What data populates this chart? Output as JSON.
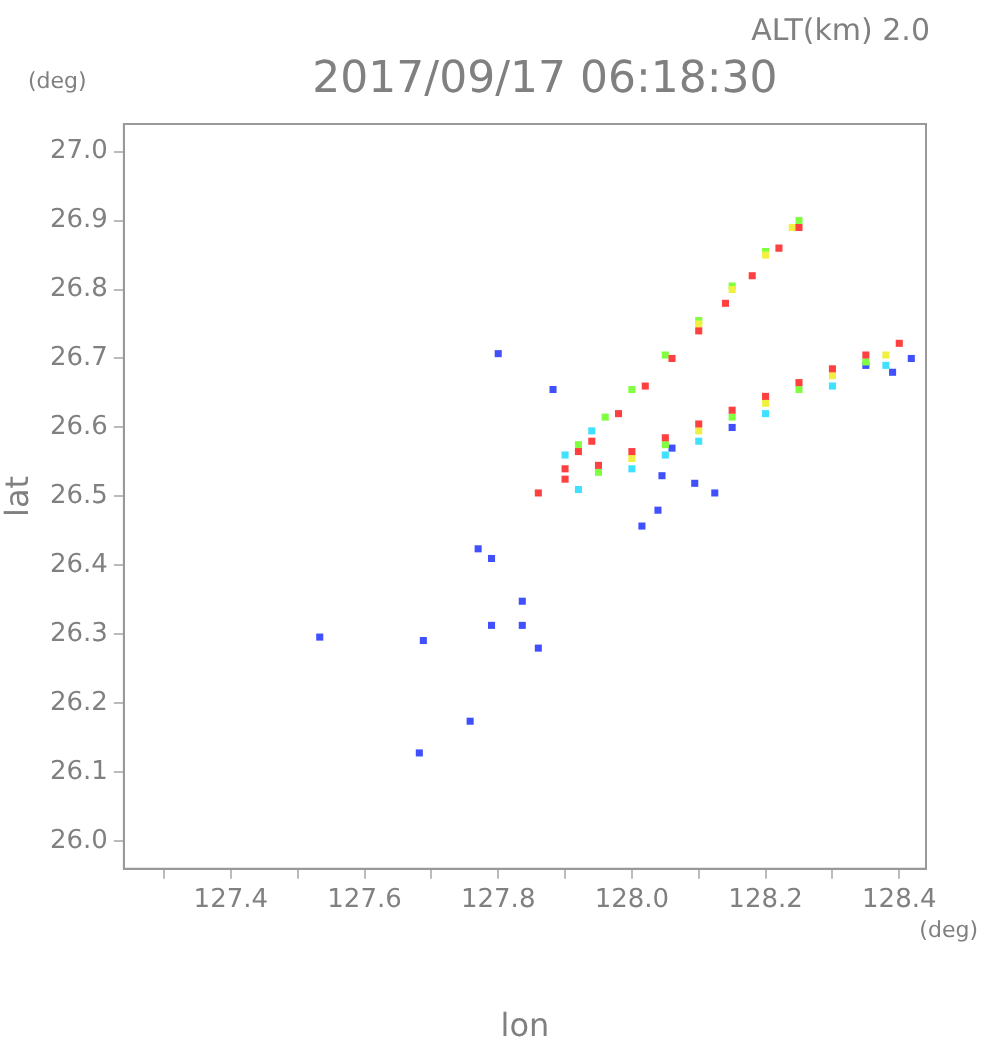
{
  "chart_data": {
    "type": "scatter",
    "title": "2017/09/17 06:18:30",
    "xlabel": "lon",
    "ylabel": "lat",
    "annotations": [
      "ALT(km) 2.0",
      "(deg)",
      "(deg)"
    ],
    "xlim": [
      127.24,
      128.44
    ],
    "ylim": [
      25.96,
      27.04
    ],
    "xticks": [
      {
        "value": 127.3,
        "label": null
      },
      127.4,
      {
        "value": 127.5,
        "label": null
      },
      127.6,
      {
        "value": 127.7,
        "label": null
      },
      127.8,
      {
        "value": 127.9,
        "label": null
      },
      {
        "value": 128.0,
        "label": "128.0"
      },
      {
        "value": 128.1,
        "label": null
      },
      128.2,
      {
        "value": 128.3,
        "label": null
      },
      128.4
    ],
    "yticks": [
      {
        "value": 26.0,
        "label": "26.0"
      },
      26.1,
      26.2,
      26.3,
      26.4,
      26.5,
      26.6,
      26.7,
      26.8,
      26.9,
      {
        "value": 27.0,
        "label": "27.0"
      }
    ],
    "grid": false,
    "legend": false,
    "marker": "square",
    "series": [
      {
        "color": "#ff4040",
        "x": [
          127.86,
          127.9,
          127.92,
          127.94,
          127.98,
          128.02,
          128.06,
          128.1,
          128.14,
          128.18,
          128.22,
          128.25,
          127.9,
          127.95,
          128.0,
          128.05,
          128.1,
          128.15,
          128.2,
          128.25,
          128.3,
          128.35,
          128.4
        ],
        "values": [
          26.505,
          26.54,
          26.565,
          26.58,
          26.62,
          26.66,
          26.7,
          26.74,
          26.78,
          26.82,
          26.86,
          26.89,
          26.525,
          26.545,
          26.565,
          26.585,
          26.605,
          26.625,
          26.645,
          26.665,
          26.685,
          26.705,
          26.722
        ]
      },
      {
        "color": "#f0f040",
        "x": [
          128.1,
          128.15,
          128.2,
          128.24,
          128.0,
          128.1,
          128.2,
          128.3,
          128.38
        ],
        "values": [
          26.75,
          26.8,
          26.85,
          26.89,
          26.555,
          26.595,
          26.635,
          26.675,
          26.705
        ]
      },
      {
        "color": "#80ff40",
        "x": [
          127.92,
          127.96,
          128.0,
          128.05,
          128.1,
          128.15,
          128.2,
          128.25,
          127.95,
          128.05,
          128.15,
          128.25,
          128.35
        ],
        "values": [
          26.575,
          26.615,
          26.655,
          26.705,
          26.755,
          26.805,
          26.855,
          26.9,
          26.535,
          26.575,
          26.615,
          26.655,
          26.695
        ]
      },
      {
        "color": "#40e0ff",
        "x": [
          127.9,
          127.94,
          127.92,
          128.0,
          128.05,
          128.1,
          128.2,
          128.3,
          128.38
        ],
        "values": [
          26.56,
          26.595,
          26.51,
          26.54,
          26.56,
          26.58,
          26.62,
          26.66,
          26.69
        ]
      },
      {
        "color": "#4050ff",
        "x": [
          127.8,
          127.882,
          127.77,
          127.79,
          127.79,
          127.836,
          127.836,
          127.86,
          127.533,
          127.688,
          127.758,
          127.682,
          128.094,
          128.124,
          128.039,
          128.015,
          128.045,
          128.06,
          128.15,
          128.35,
          128.418,
          128.39
        ],
        "values": [
          26.707,
          26.655,
          26.424,
          26.41,
          26.313,
          26.313,
          26.348,
          26.28,
          26.296,
          26.291,
          26.174,
          26.128,
          26.519,
          26.505,
          26.48,
          26.457,
          26.53,
          26.57,
          26.6,
          26.69,
          26.7,
          26.68
        ]
      }
    ]
  }
}
